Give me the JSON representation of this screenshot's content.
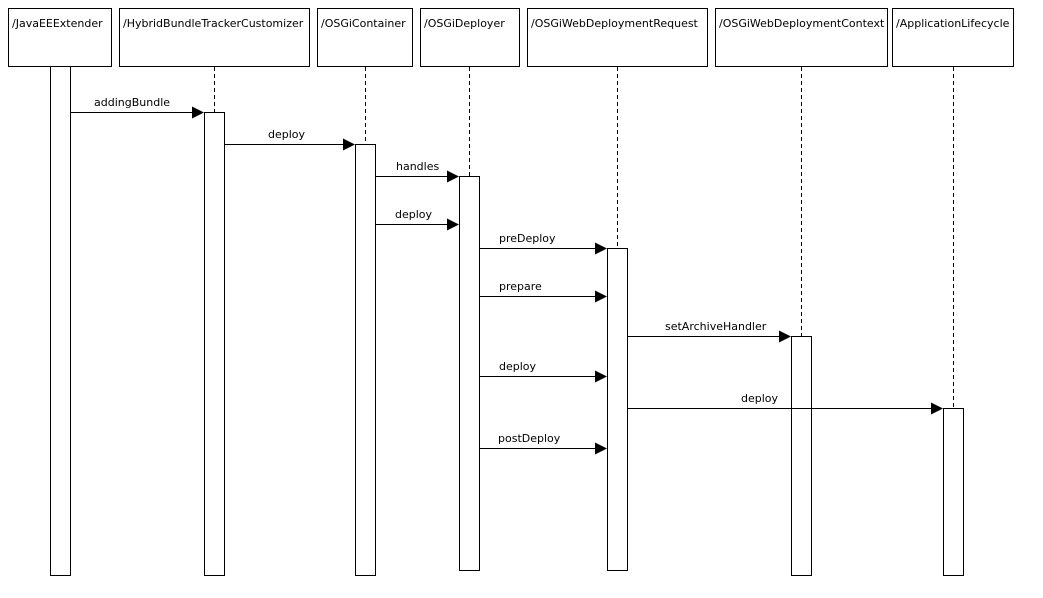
{
  "participants": [
    {
      "label": "/JavaEEExtender"
    },
    {
      "label": "/HybridBundleTrackerCustomizer"
    },
    {
      "label": "/OSGiContainer"
    },
    {
      "label": "/OSGiDeployer"
    },
    {
      "label": "/OSGiWebDeploymentRequest"
    },
    {
      "label": "/OSGiWebDeploymentContext"
    },
    {
      "label": "/ApplicationLifecycle"
    }
  ],
  "messages": [
    {
      "label": "addingBundle"
    },
    {
      "label": "deploy"
    },
    {
      "label": "handles"
    },
    {
      "label": "deploy"
    },
    {
      "label": "preDeploy"
    },
    {
      "label": "prepare"
    },
    {
      "label": "setArchiveHandler"
    },
    {
      "label": "deploy"
    },
    {
      "label": "deploy"
    },
    {
      "label": "postDeploy"
    }
  ]
}
